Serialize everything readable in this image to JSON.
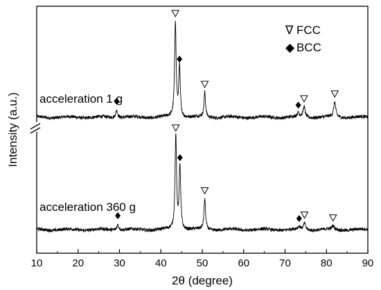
{
  "chart_data": {
    "type": "line",
    "xlabel": "2θ (degree)",
    "ylabel": "Intensity (a.u.)",
    "xlim": [
      10,
      90
    ],
    "xticks": [
      "10",
      "20",
      "30",
      "40",
      "50",
      "60",
      "70",
      "80",
      "90"
    ],
    "yticks_shown": false,
    "axis_break_on_y": true,
    "legend": {
      "placement": "top-right",
      "entries": [
        {
          "symbol": "∇",
          "name": "FCC",
          "marker": "open-triangle-down"
        },
        {
          "symbol": "◆",
          "name": "BCC",
          "marker": "filled-diamond"
        }
      ]
    },
    "series": [
      {
        "name": "acceleration 1 g",
        "baseline": 1.0,
        "peaks": [
          {
            "x": 29.3,
            "height": 0.08,
            "phase": "BCC"
          },
          {
            "x": 43.5,
            "height": 1.0,
            "phase": "FCC"
          },
          {
            "x": 44.5,
            "height": 0.52,
            "phase": "BCC"
          },
          {
            "x": 50.6,
            "height": 0.26,
            "phase": "FCC"
          },
          {
            "x": 73.2,
            "height": 0.04,
            "phase": "BCC"
          },
          {
            "x": 74.6,
            "height": 0.11,
            "phase": "FCC"
          },
          {
            "x": 82.0,
            "height": 0.16,
            "phase": "FCC"
          }
        ]
      },
      {
        "name": "acceleration 360 g",
        "baseline": 0.0,
        "peaks": [
          {
            "x": 29.6,
            "height": 0.06,
            "phase": "BCC"
          },
          {
            "x": 43.6,
            "height": 1.0,
            "phase": "FCC"
          },
          {
            "x": 44.6,
            "height": 0.68,
            "phase": "BCC"
          },
          {
            "x": 50.6,
            "height": 0.33,
            "phase": "FCC"
          },
          {
            "x": 73.4,
            "height": 0.03,
            "phase": "BCC"
          },
          {
            "x": 74.7,
            "height": 0.07,
            "phase": "FCC"
          },
          {
            "x": 81.6,
            "height": 0.04,
            "phase": "FCC"
          }
        ]
      }
    ]
  }
}
